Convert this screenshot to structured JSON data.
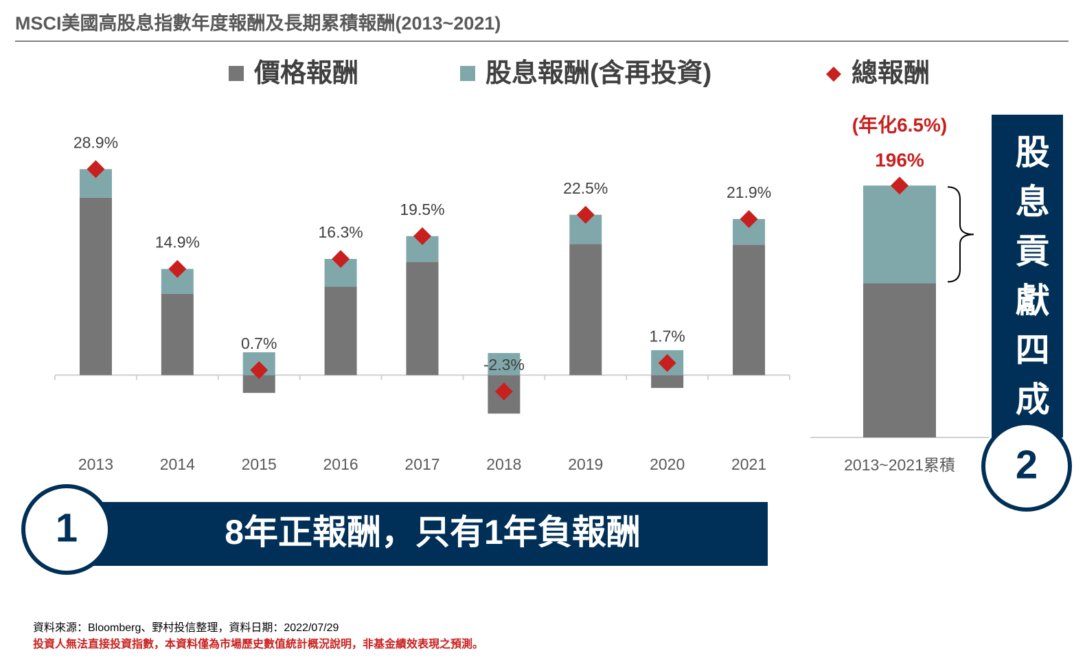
{
  "title": "MSCI美國高股息指數年度報酬及長期累積報酬(2013~2021)",
  "chart_data": [
    {
      "type": "bar",
      "categories": [
        "2013",
        "2014",
        "2015",
        "2016",
        "2017",
        "2018",
        "2019",
        "2020",
        "2021"
      ],
      "series": [
        {
          "name": "價格報酬",
          "color": "#767676",
          "values": [
            24.9,
            11.4,
            -2.5,
            12.4,
            15.9,
            -5.4,
            18.4,
            -1.8,
            18.3
          ]
        },
        {
          "name": "股息報酬(含再投資)",
          "color": "#80a8ab",
          "values": [
            4.0,
            3.5,
            3.2,
            3.9,
            3.6,
            3.1,
            4.1,
            3.5,
            3.6
          ]
        },
        {
          "name": "總報酬",
          "color": "#c8201e",
          "marker": "diamond",
          "values": [
            28.9,
            14.9,
            0.7,
            16.3,
            19.5,
            -2.3,
            22.5,
            1.7,
            21.9
          ],
          "value_labels": [
            "28.9%",
            "14.9%",
            "0.7%",
            "16.3%",
            "19.5%",
            "-2.3%",
            "22.5%",
            "1.7%",
            "21.9%"
          ]
        }
      ],
      "ylim": [
        -10,
        35
      ]
    },
    {
      "type": "bar",
      "categories": [
        "2013~2021累積"
      ],
      "series": [
        {
          "color": "#767676",
          "values": [
            120
          ]
        },
        {
          "color": "#80a8ab",
          "values": [
            76
          ]
        },
        {
          "color": "#c8201e",
          "marker": "diamond",
          "values": [
            196
          ],
          "value_labels": [
            "196%"
          ]
        }
      ],
      "annotation": "(年化6.5%)",
      "ylim": [
        0,
        210
      ]
    }
  ],
  "callouts": [
    {
      "number": "1",
      "text": "8年正報酬，只有1年負報酬"
    },
    {
      "number": "2",
      "text": "股息貢獻四成"
    }
  ],
  "source": "資料來源：Bloomberg、野村投信整理，資料日期：2022/07/29",
  "disclaimer": "投資人無法直接投資指數，本資料僅為市場歷史數值統計概況說明，非基金績效表現之預測。"
}
